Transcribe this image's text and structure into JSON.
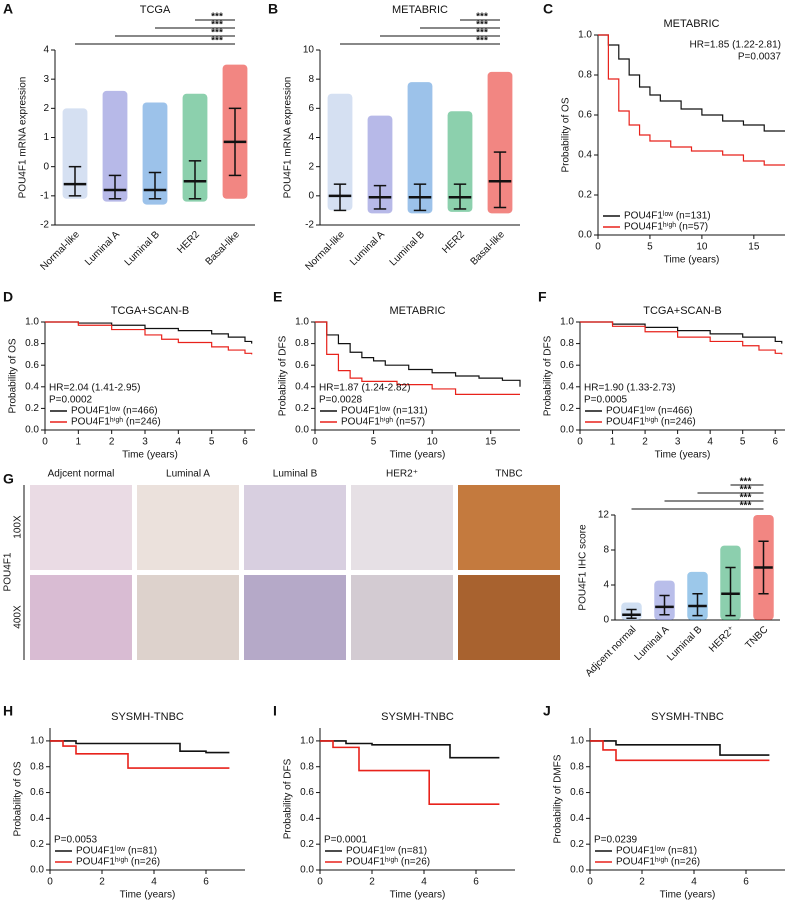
{
  "chart_data": [
    {
      "type": "dot",
      "panel": "A",
      "title": "TCGA",
      "ylabel": "POU4F1 mRNA expression",
      "categories": [
        "Normal-like",
        "Luminal A",
        "Luminal B",
        "HER2",
        "Basal-like"
      ],
      "colors": [
        "#b3c6e7",
        "#7b7fd6",
        "#4a90d9",
        "#2eaa6a",
        "#e8221b"
      ],
      "values": [
        -0.6,
        -0.8,
        -0.8,
        -0.5,
        0.85
      ],
      "low": [
        -1,
        -1.1,
        -1.1,
        -1.1,
        -0.3
      ],
      "high": [
        0,
        -0.3,
        -0.2,
        0.2,
        2
      ],
      "min": [
        -1.1,
        -1.2,
        -1.3,
        -1.2,
        -1.1
      ],
      "max": [
        2,
        2.6,
        2.2,
        2.5,
        3.5
      ],
      "ylim": [
        -2,
        4
      ],
      "yticks": [
        -2,
        -1,
        0,
        1,
        2,
        3,
        4
      ],
      "comparisons": [
        {
          "groups": [
            "Normal-like",
            "Basal-like"
          ],
          "label": "***"
        },
        {
          "groups": [
            "Luminal A",
            "Basal-like"
          ],
          "label": "***"
        },
        {
          "groups": [
            "Luminal B",
            "Basal-like"
          ],
          "label": "***"
        },
        {
          "groups": [
            "HER2",
            "Basal-like"
          ],
          "label": "***"
        }
      ]
    },
    {
      "type": "dot",
      "panel": "B",
      "title": "METABRIC",
      "ylabel": "POU4F1 mRNA expression",
      "categories": [
        "Normal-like",
        "Luminal A",
        "Luminal B",
        "HER2",
        "Basal-like"
      ],
      "colors": [
        "#b3c6e7",
        "#7b7fd6",
        "#4a90d9",
        "#2eaa6a",
        "#e8221b"
      ],
      "values": [
        0,
        -0.1,
        -0.1,
        -0.1,
        1
      ],
      "low": [
        -1,
        -0.9,
        -1,
        -0.9,
        -0.8
      ],
      "high": [
        0.8,
        0.7,
        0.8,
        0.8,
        3
      ],
      "min": [
        -1,
        -1.2,
        -1.2,
        -1.1,
        -1.2
      ],
      "max": [
        7,
        5.5,
        7.8,
        5.8,
        8.5
      ],
      "ylim": [
        -2,
        10
      ],
      "yticks": [
        -2,
        0,
        2,
        4,
        6,
        8,
        10
      ],
      "comparisons": [
        {
          "groups": [
            "Normal-like",
            "Basal-like"
          ],
          "label": "***"
        },
        {
          "groups": [
            "Luminal A",
            "Basal-like"
          ],
          "label": "***"
        },
        {
          "groups": [
            "Luminal B",
            "Basal-like"
          ],
          "label": "***"
        },
        {
          "groups": [
            "HER2",
            "Basal-like"
          ],
          "label": "***"
        }
      ]
    },
    {
      "type": "line",
      "step": true,
      "panel": "C",
      "title": "METABRIC",
      "xlabel": "Time (years)",
      "ylabel": "Probability of OS",
      "xlim": [
        0,
        18
      ],
      "xticks": [
        0,
        5,
        10,
        15
      ],
      "ylim": [
        0,
        1
      ],
      "yticks": [
        {
          "value": 0,
          "label": "0.0"
        },
        0.2,
        0.4,
        0.6,
        0.8,
        {
          "value": 1,
          "label": "1.0"
        }
      ],
      "annotations": [
        "HR=1.85 (1.22-2.81)",
        "P=0.0037"
      ],
      "annotation_corner": "top-right",
      "legend": "bottom-left",
      "series": [
        {
          "name": "POU4F1ˡᵒʷ (n=131)",
          "color": "#111111",
          "x": [
            0,
            1,
            2,
            3,
            4,
            5,
            6,
            8,
            10,
            12,
            14,
            16,
            18
          ],
          "y": [
            1,
            0.95,
            0.88,
            0.8,
            0.74,
            0.7,
            0.67,
            0.63,
            0.6,
            0.57,
            0.55,
            0.52,
            0.52
          ]
        },
        {
          "name": "POU4F1ʰⁱᵍʰ (n=57)",
          "color": "#e8221b",
          "x": [
            0,
            1,
            2,
            3,
            4,
            5,
            7,
            9,
            12,
            14,
            16,
            18
          ],
          "y": [
            1,
            0.78,
            0.62,
            0.55,
            0.5,
            0.47,
            0.44,
            0.42,
            0.4,
            0.37,
            0.35,
            0.35
          ]
        }
      ]
    },
    {
      "type": "line",
      "step": true,
      "panel": "D",
      "title": "TCGA+SCAN-B",
      "xlabel": "Time (years)",
      "ylabel": "Probability of OS",
      "xlim": [
        0,
        6.3
      ],
      "xticks": [
        0,
        1,
        2,
        3,
        4,
        5,
        6
      ],
      "ylim": [
        0,
        1
      ],
      "yticks": [
        {
          "value": 0,
          "label": "0.0"
        },
        0.2,
        0.4,
        0.6,
        0.8,
        {
          "value": 1,
          "label": "1.0"
        }
      ],
      "annotations": [
        "HR=2.04 (1.41-2.95)",
        "P=0.0002"
      ],
      "annotation_corner": "bottom-left",
      "legend": "bottom-left",
      "series": [
        {
          "name": "POU4F1ˡᵒʷ (n=466)",
          "color": "#111111",
          "x": [
            0,
            1,
            2,
            3,
            4,
            5,
            5.5,
            6,
            6.2
          ],
          "y": [
            1,
            0.99,
            0.97,
            0.94,
            0.92,
            0.89,
            0.86,
            0.82,
            0.8
          ]
        },
        {
          "name": "POU4F1ʰⁱᵍʰ (n=246)",
          "color": "#e8221b",
          "x": [
            0,
            1,
            2,
            3,
            3.5,
            4,
            5,
            5.5,
            6,
            6.2
          ],
          "y": [
            1,
            0.97,
            0.93,
            0.88,
            0.84,
            0.81,
            0.77,
            0.74,
            0.71,
            0.7
          ]
        }
      ]
    },
    {
      "type": "line",
      "step": true,
      "panel": "E",
      "title": "METABRIC",
      "xlabel": "Time (years)",
      "ylabel": "Probability of DFS",
      "xlim": [
        0,
        17.5
      ],
      "xticks": [
        0,
        5,
        10,
        15
      ],
      "ylim": [
        0,
        1
      ],
      "yticks": [
        {
          "value": 0,
          "label": "0.0"
        },
        0.2,
        0.4,
        0.6,
        0.8,
        {
          "value": 1,
          "label": "1.0"
        }
      ],
      "annotations": [
        "HR=1.87 (1.24-2.82)",
        "P=0.0028"
      ],
      "annotation_corner": "bottom-left",
      "legend": "bottom-left",
      "series": [
        {
          "name": "POU4F1ˡᵒʷ (n=131)",
          "color": "#111111",
          "x": [
            0,
            1,
            2,
            3,
            4,
            5,
            6,
            8,
            10,
            12,
            14,
            16,
            17.5
          ],
          "y": [
            1,
            0.88,
            0.8,
            0.72,
            0.67,
            0.64,
            0.6,
            0.56,
            0.53,
            0.5,
            0.48,
            0.46,
            0.4
          ]
        },
        {
          "name": "POU4F1ʰⁱᵍʰ (n=57)",
          "color": "#e8221b",
          "x": [
            0,
            1,
            2,
            3,
            4,
            5,
            7,
            10,
            12,
            17.5
          ],
          "y": [
            1,
            0.7,
            0.55,
            0.48,
            0.45,
            0.45,
            0.42,
            0.38,
            0.33,
            0.33
          ]
        }
      ]
    },
    {
      "type": "line",
      "step": true,
      "panel": "F",
      "title": "TCGA+SCAN-B",
      "xlabel": "Time (years)",
      "ylabel": "Probability of DFS",
      "xlim": [
        0,
        6.3
      ],
      "xticks": [
        0,
        1,
        2,
        3,
        4,
        5,
        6
      ],
      "ylim": [
        0,
        1
      ],
      "yticks": [
        {
          "value": 0,
          "label": "0.0"
        },
        0.2,
        0.4,
        0.6,
        0.8,
        {
          "value": 1,
          "label": "1.0"
        }
      ],
      "annotations": [
        "HR=1.90 (1.33-2.73)",
        "P=0.0005"
      ],
      "annotation_corner": "bottom-left",
      "legend": "bottom-left",
      "series": [
        {
          "name": "POU4F1ˡᵒʷ (n=466)",
          "color": "#111111",
          "x": [
            0,
            1,
            2,
            3,
            4,
            5,
            6,
            6.2
          ],
          "y": [
            1,
            0.98,
            0.95,
            0.92,
            0.89,
            0.86,
            0.82,
            0.8
          ]
        },
        {
          "name": "POU4F1ʰⁱᵍʰ (n=246)",
          "color": "#e8221b",
          "x": [
            0,
            1,
            2,
            3,
            4,
            5,
            5.5,
            6,
            6.2
          ],
          "y": [
            1,
            0.96,
            0.91,
            0.86,
            0.82,
            0.78,
            0.74,
            0.71,
            0.7
          ]
        }
      ]
    },
    {
      "type": "dot",
      "ylabel": "POU4F1 IHC score",
      "categories": [
        "Adjcent normal",
        "Luminal A",
        "Luminal B",
        "HER2⁺",
        "TNBC"
      ],
      "colors": [
        "#a9c4e8",
        "#7f88d8",
        "#4a9ad8",
        "#2ea86b",
        "#e8221b"
      ],
      "values": [
        0.6,
        1.5,
        1.6,
        3,
        6
      ],
      "low": [
        0.2,
        0.6,
        0.5,
        0.5,
        3
      ],
      "high": [
        1.2,
        2.8,
        3,
        6,
        9
      ],
      "min": [
        0,
        0,
        0,
        0,
        0
      ],
      "max": [
        2,
        4.5,
        5.5,
        8.5,
        12
      ],
      "ylim": [
        0,
        12
      ],
      "yticks": [
        0,
        4,
        8,
        12
      ],
      "comparisons": [
        {
          "groups": [
            "Adjcent normal",
            "TNBC"
          ],
          "label": "***"
        },
        {
          "groups": [
            "Luminal A",
            "TNBC"
          ],
          "label": "***"
        },
        {
          "groups": [
            "Luminal B",
            "TNBC"
          ],
          "label": "***"
        },
        {
          "groups": [
            "HER2⁺",
            "TNBC"
          ],
          "label": "***"
        }
      ]
    },
    {
      "type": "line",
      "step": true,
      "panel": "H",
      "title": "SYSMH-TNBC",
      "xlabel": "Time (years)",
      "ylabel": "Probability of OS",
      "xlim": [
        0,
        7.5
      ],
      "xticks": [
        0,
        2,
        4,
        6
      ],
      "ylim": [
        0,
        1.1
      ],
      "yticks": [
        {
          "value": 0,
          "label": "0.0"
        },
        0.2,
        0.4,
        0.6,
        0.8,
        {
          "value": 1,
          "label": "1.0"
        }
      ],
      "annotations": [
        "P=0.0053"
      ],
      "annotation_corner": "bottom-left",
      "legend": "bottom-left",
      "series": [
        {
          "name": "POU4F1ˡᵒʷ (n=81)",
          "color": "#111111",
          "x": [
            0,
            1,
            5,
            6,
            6.9
          ],
          "y": [
            1,
            0.98,
            0.92,
            0.91,
            0.91
          ]
        },
        {
          "name": "POU4F1ʰⁱᵍʰ (n=26)",
          "color": "#e8221b",
          "x": [
            0,
            0.5,
            1,
            3,
            6.9
          ],
          "y": [
            1,
            0.96,
            0.9,
            0.79,
            0.79
          ]
        }
      ]
    },
    {
      "type": "line",
      "step": true,
      "panel": "I",
      "title": "SYSMH-TNBC",
      "xlabel": "Time (years)",
      "ylabel": "Probability of DFS",
      "xlim": [
        0,
        7.5
      ],
      "xticks": [
        0,
        2,
        4,
        6
      ],
      "ylim": [
        0,
        1.1
      ],
      "yticks": [
        {
          "value": 0,
          "label": "0.0"
        },
        0.2,
        0.4,
        0.6,
        0.8,
        {
          "value": 1,
          "label": "1.0"
        }
      ],
      "annotations": [
        "P=0.0001"
      ],
      "annotation_corner": "bottom-left",
      "legend": "bottom-left",
      "series": [
        {
          "name": "POU4F1ˡᵒʷ (n=81)",
          "color": "#111111",
          "x": [
            0,
            1,
            2,
            5,
            6.9
          ],
          "y": [
            1,
            0.98,
            0.97,
            0.87,
            0.87
          ]
        },
        {
          "name": "POU4F1ʰⁱᵍʰ (n=26)",
          "color": "#e8221b",
          "x": [
            0,
            0.5,
            1.5,
            4.2,
            6.9
          ],
          "y": [
            1,
            0.95,
            0.77,
            0.51,
            0.51
          ]
        }
      ]
    },
    {
      "type": "line",
      "step": true,
      "panel": "J",
      "title": "SYSMH-TNBC",
      "xlabel": "Time (years)",
      "ylabel": "Probability of DMFS",
      "xlim": [
        0,
        7.5
      ],
      "xticks": [
        0,
        2,
        4,
        6
      ],
      "ylim": [
        0,
        1.1
      ],
      "yticks": [
        {
          "value": 0,
          "label": "0.0"
        },
        0.2,
        0.4,
        0.6,
        0.8,
        {
          "value": 1,
          "label": "1.0"
        }
      ],
      "annotations": [
        "P=0.0239"
      ],
      "annotation_corner": "bottom-left",
      "legend": "bottom-left",
      "series": [
        {
          "name": "POU4F1ˡᵒʷ (n=81)",
          "color": "#111111",
          "x": [
            0,
            1,
            5,
            6.9
          ],
          "y": [
            1,
            0.97,
            0.89,
            0.89
          ]
        },
        {
          "name": "POU4F1ʰⁱᵍʰ (n=26)",
          "color": "#e8221b",
          "x": [
            0,
            0.5,
            1,
            6.9
          ],
          "y": [
            1,
            0.93,
            0.85,
            0.85
          ]
        }
      ]
    }
  ],
  "panel_g": {
    "panel": "G",
    "marker": "POU4F1",
    "columns": [
      "Adjcent normal",
      "Luminal A",
      "Luminal B",
      "HER2⁺",
      "TNBC"
    ],
    "rows": [
      "100X",
      "400X"
    ]
  }
}
